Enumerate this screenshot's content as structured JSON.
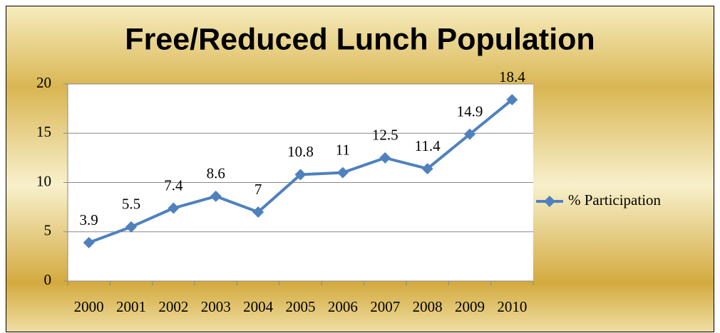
{
  "chart_data": {
    "type": "line",
    "title": "Free/Reduced Lunch Population",
    "categories": [
      "2000",
      "2001",
      "2002",
      "2003",
      "2004",
      "2005",
      "2006",
      "2007",
      "2008",
      "2009",
      "2010"
    ],
    "series": [
      {
        "name": "% Participation",
        "color": "#4f81bd",
        "values": [
          3.9,
          5.5,
          7.4,
          8.6,
          7,
          10.8,
          11,
          12.5,
          11.4,
          14.9,
          18.4
        ]
      }
    ],
    "ylim": [
      0,
      20
    ],
    "yticks": [
      0,
      5,
      10,
      15,
      20
    ],
    "grid": true,
    "legend": "right",
    "data_labels": true
  }
}
